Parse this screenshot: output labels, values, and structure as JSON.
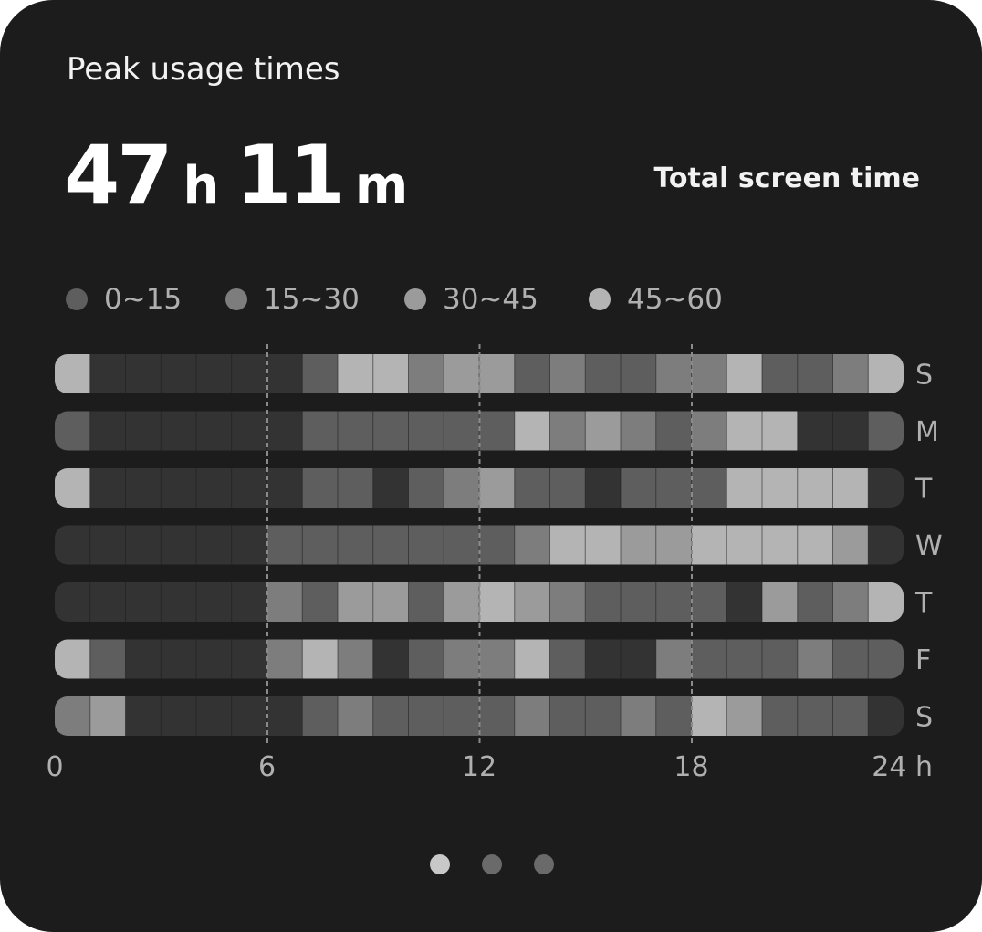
{
  "card": {
    "title": "Peak usage times",
    "total": {
      "hours": "47",
      "hours_unit": "h",
      "minutes": "11",
      "minutes_unit": "m"
    },
    "total_label": "Total screen time"
  },
  "legend": [
    {
      "label": "0~15",
      "color": "#5e5e5e"
    },
    {
      "label": "15~30",
      "color": "#7d7d7d"
    },
    {
      "label": "30~45",
      "color": "#9b9b9b"
    },
    {
      "label": "45~60",
      "color": "#b4b4b4"
    }
  ],
  "pager": {
    "count": 3,
    "active": 0,
    "active_color": "#c8c8c8",
    "inactive_color": "#6a6a6a"
  },
  "chart_data": {
    "type": "heatmap",
    "x_ticks": [
      "0",
      "6",
      "12",
      "18",
      "24 h"
    ],
    "x_tick_values": [
      0,
      6,
      12,
      18,
      24
    ],
    "gridlines_at": [
      6,
      12,
      18
    ],
    "days": [
      "S",
      "M",
      "T",
      "W",
      "T",
      "F",
      "S"
    ],
    "bins": [
      "none",
      "0~15",
      "15~30",
      "30~45",
      "45~60"
    ],
    "bin_colors": [
      "#333333",
      "#5e5e5e",
      "#7d7d7d",
      "#9b9b9b",
      "#b4b4b4"
    ],
    "rows": [
      [
        4,
        0,
        0,
        0,
        0,
        0,
        0,
        1,
        4,
        4,
        2,
        3,
        3,
        1,
        2,
        1,
        1,
        2,
        2,
        4,
        1,
        1,
        2,
        4
      ],
      [
        1,
        0,
        0,
        0,
        0,
        0,
        0,
        1,
        1,
        1,
        1,
        1,
        1,
        4,
        2,
        3,
        2,
        1,
        2,
        4,
        4,
        0,
        0,
        1
      ],
      [
        4,
        0,
        0,
        0,
        0,
        0,
        0,
        1,
        1,
        0,
        1,
        2,
        3,
        1,
        1,
        0,
        1,
        1,
        1,
        4,
        4,
        4,
        4,
        0
      ],
      [
        0,
        0,
        0,
        0,
        0,
        0,
        1,
        1,
        1,
        1,
        1,
        1,
        1,
        2,
        4,
        4,
        3,
        3,
        4,
        4,
        4,
        4,
        3,
        0
      ],
      [
        0,
        0,
        0,
        0,
        0,
        0,
        2,
        1,
        3,
        3,
        1,
        3,
        4,
        3,
        2,
        1,
        1,
        1,
        1,
        0,
        3,
        1,
        2,
        4
      ],
      [
        4,
        1,
        0,
        0,
        0,
        0,
        2,
        4,
        2,
        0,
        1,
        2,
        2,
        4,
        1,
        0,
        0,
        2,
        1,
        1,
        1,
        2,
        1,
        1
      ],
      [
        2,
        3,
        0,
        0,
        0,
        0,
        0,
        1,
        2,
        1,
        1,
        1,
        1,
        2,
        1,
        1,
        2,
        1,
        4,
        3,
        1,
        1,
        1,
        0
      ]
    ]
  }
}
